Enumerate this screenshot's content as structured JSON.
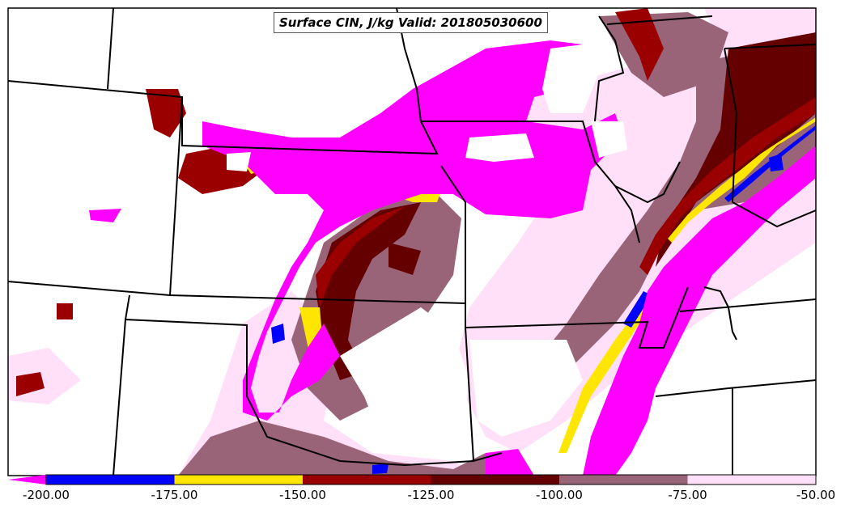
{
  "map_title": "Surface CIN, J/kg Valid: 201805030600",
  "colorbar": {
    "ticks": [
      "-200.00",
      "-175.00",
      "-150.00",
      "-125.00",
      "-100.00",
      "-75.00",
      "-50.00"
    ],
    "colors": [
      "#ff00ff",
      "#0000ff",
      "#ffe600",
      "#9b0000",
      "#640000",
      "#9a6478",
      "#ffe0f8"
    ],
    "below_min_color": "#ff00ff"
  },
  "colors": {
    "state_borders": "#000000",
    "background": "#ffffff"
  }
}
